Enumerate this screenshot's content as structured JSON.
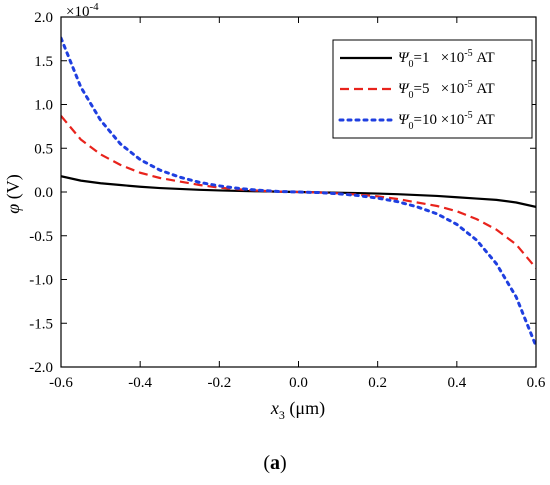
{
  "chart_data": {
    "type": "line",
    "xlabel": {
      "symbol": "x",
      "subscript": "3",
      "unit": " (μm)"
    },
    "ylabel": {
      "symbol": "φ",
      "unit": " (V)"
    },
    "y_multiplier": "×10",
    "y_multiplier_exp": "-4",
    "xlim": [
      -0.6,
      0.6
    ],
    "ylim": [
      -2.0,
      2.0
    ],
    "xticks": [
      "-0.6",
      "-0.4",
      "-0.2",
      "0.0",
      "0.2",
      "0.4",
      "0.6"
    ],
    "yticks": [
      "2.0",
      "1.5",
      "1.0",
      "0.5",
      "0.0",
      "-0.5",
      "-1.0",
      "-1.5",
      "-2.0"
    ],
    "grid": false,
    "legend_position": "top-right",
    "series": [
      {
        "symbol": "Ψ",
        "sub": "0",
        "eq": "=1",
        "pad": "   ",
        "mult": "×10",
        "exp": "-5",
        "unit": " AT",
        "color": "#000000",
        "dash": "solid",
        "x": [
          -0.6,
          -0.55,
          -0.5,
          -0.45,
          -0.4,
          -0.35,
          -0.3,
          -0.25,
          -0.2,
          -0.15,
          -0.1,
          -0.05,
          0.0,
          0.05,
          0.1,
          0.15,
          0.2,
          0.25,
          0.3,
          0.35,
          0.4,
          0.45,
          0.5,
          0.55,
          0.6
        ],
        "y": [
          0.18,
          0.13,
          0.1,
          0.08,
          0.06,
          0.045,
          0.035,
          0.025,
          0.018,
          0.012,
          0.008,
          0.004,
          0.0,
          -0.004,
          -0.008,
          -0.012,
          -0.018,
          -0.025,
          -0.035,
          -0.045,
          -0.06,
          -0.075,
          -0.09,
          -0.12,
          -0.17
        ]
      },
      {
        "symbol": "Ψ",
        "sub": "0",
        "eq": "=5",
        "pad": "   ",
        "mult": "×10",
        "exp": "-5",
        "unit": " AT",
        "color": "#e8231c",
        "dash": "dashed",
        "x": [
          -0.6,
          -0.55,
          -0.5,
          -0.45,
          -0.4,
          -0.35,
          -0.3,
          -0.25,
          -0.2,
          -0.15,
          -0.1,
          -0.05,
          0.0,
          0.05,
          0.1,
          0.15,
          0.2,
          0.25,
          0.3,
          0.35,
          0.4,
          0.45,
          0.5,
          0.55,
          0.6
        ],
        "y": [
          0.87,
          0.6,
          0.43,
          0.31,
          0.22,
          0.16,
          0.12,
          0.08,
          0.05,
          0.03,
          0.015,
          0.005,
          0.0,
          -0.005,
          -0.015,
          -0.03,
          -0.05,
          -0.08,
          -0.12,
          -0.16,
          -0.22,
          -0.31,
          -0.43,
          -0.6,
          -0.87
        ]
      },
      {
        "symbol": "Ψ",
        "sub": "0",
        "eq": "=10",
        "pad": " ",
        "mult": "×10",
        "exp": "-5",
        "unit": " AT",
        "color": "#1f3fe0",
        "dash": "dotted",
        "x": [
          -0.6,
          -0.55,
          -0.5,
          -0.45,
          -0.4,
          -0.35,
          -0.3,
          -0.25,
          -0.2,
          -0.15,
          -0.1,
          -0.05,
          0.0,
          0.05,
          0.1,
          0.15,
          0.2,
          0.25,
          0.3,
          0.35,
          0.4,
          0.45,
          0.5,
          0.55,
          0.6
        ],
        "y": [
          1.76,
          1.2,
          0.82,
          0.55,
          0.37,
          0.25,
          0.17,
          0.11,
          0.07,
          0.04,
          0.02,
          0.006,
          0.0,
          -0.006,
          -0.02,
          -0.04,
          -0.07,
          -0.11,
          -0.17,
          -0.25,
          -0.37,
          -0.55,
          -0.82,
          -1.2,
          -1.76
        ]
      }
    ]
  },
  "caption": {
    "open": "(",
    "letter": "a",
    "close": ")"
  }
}
